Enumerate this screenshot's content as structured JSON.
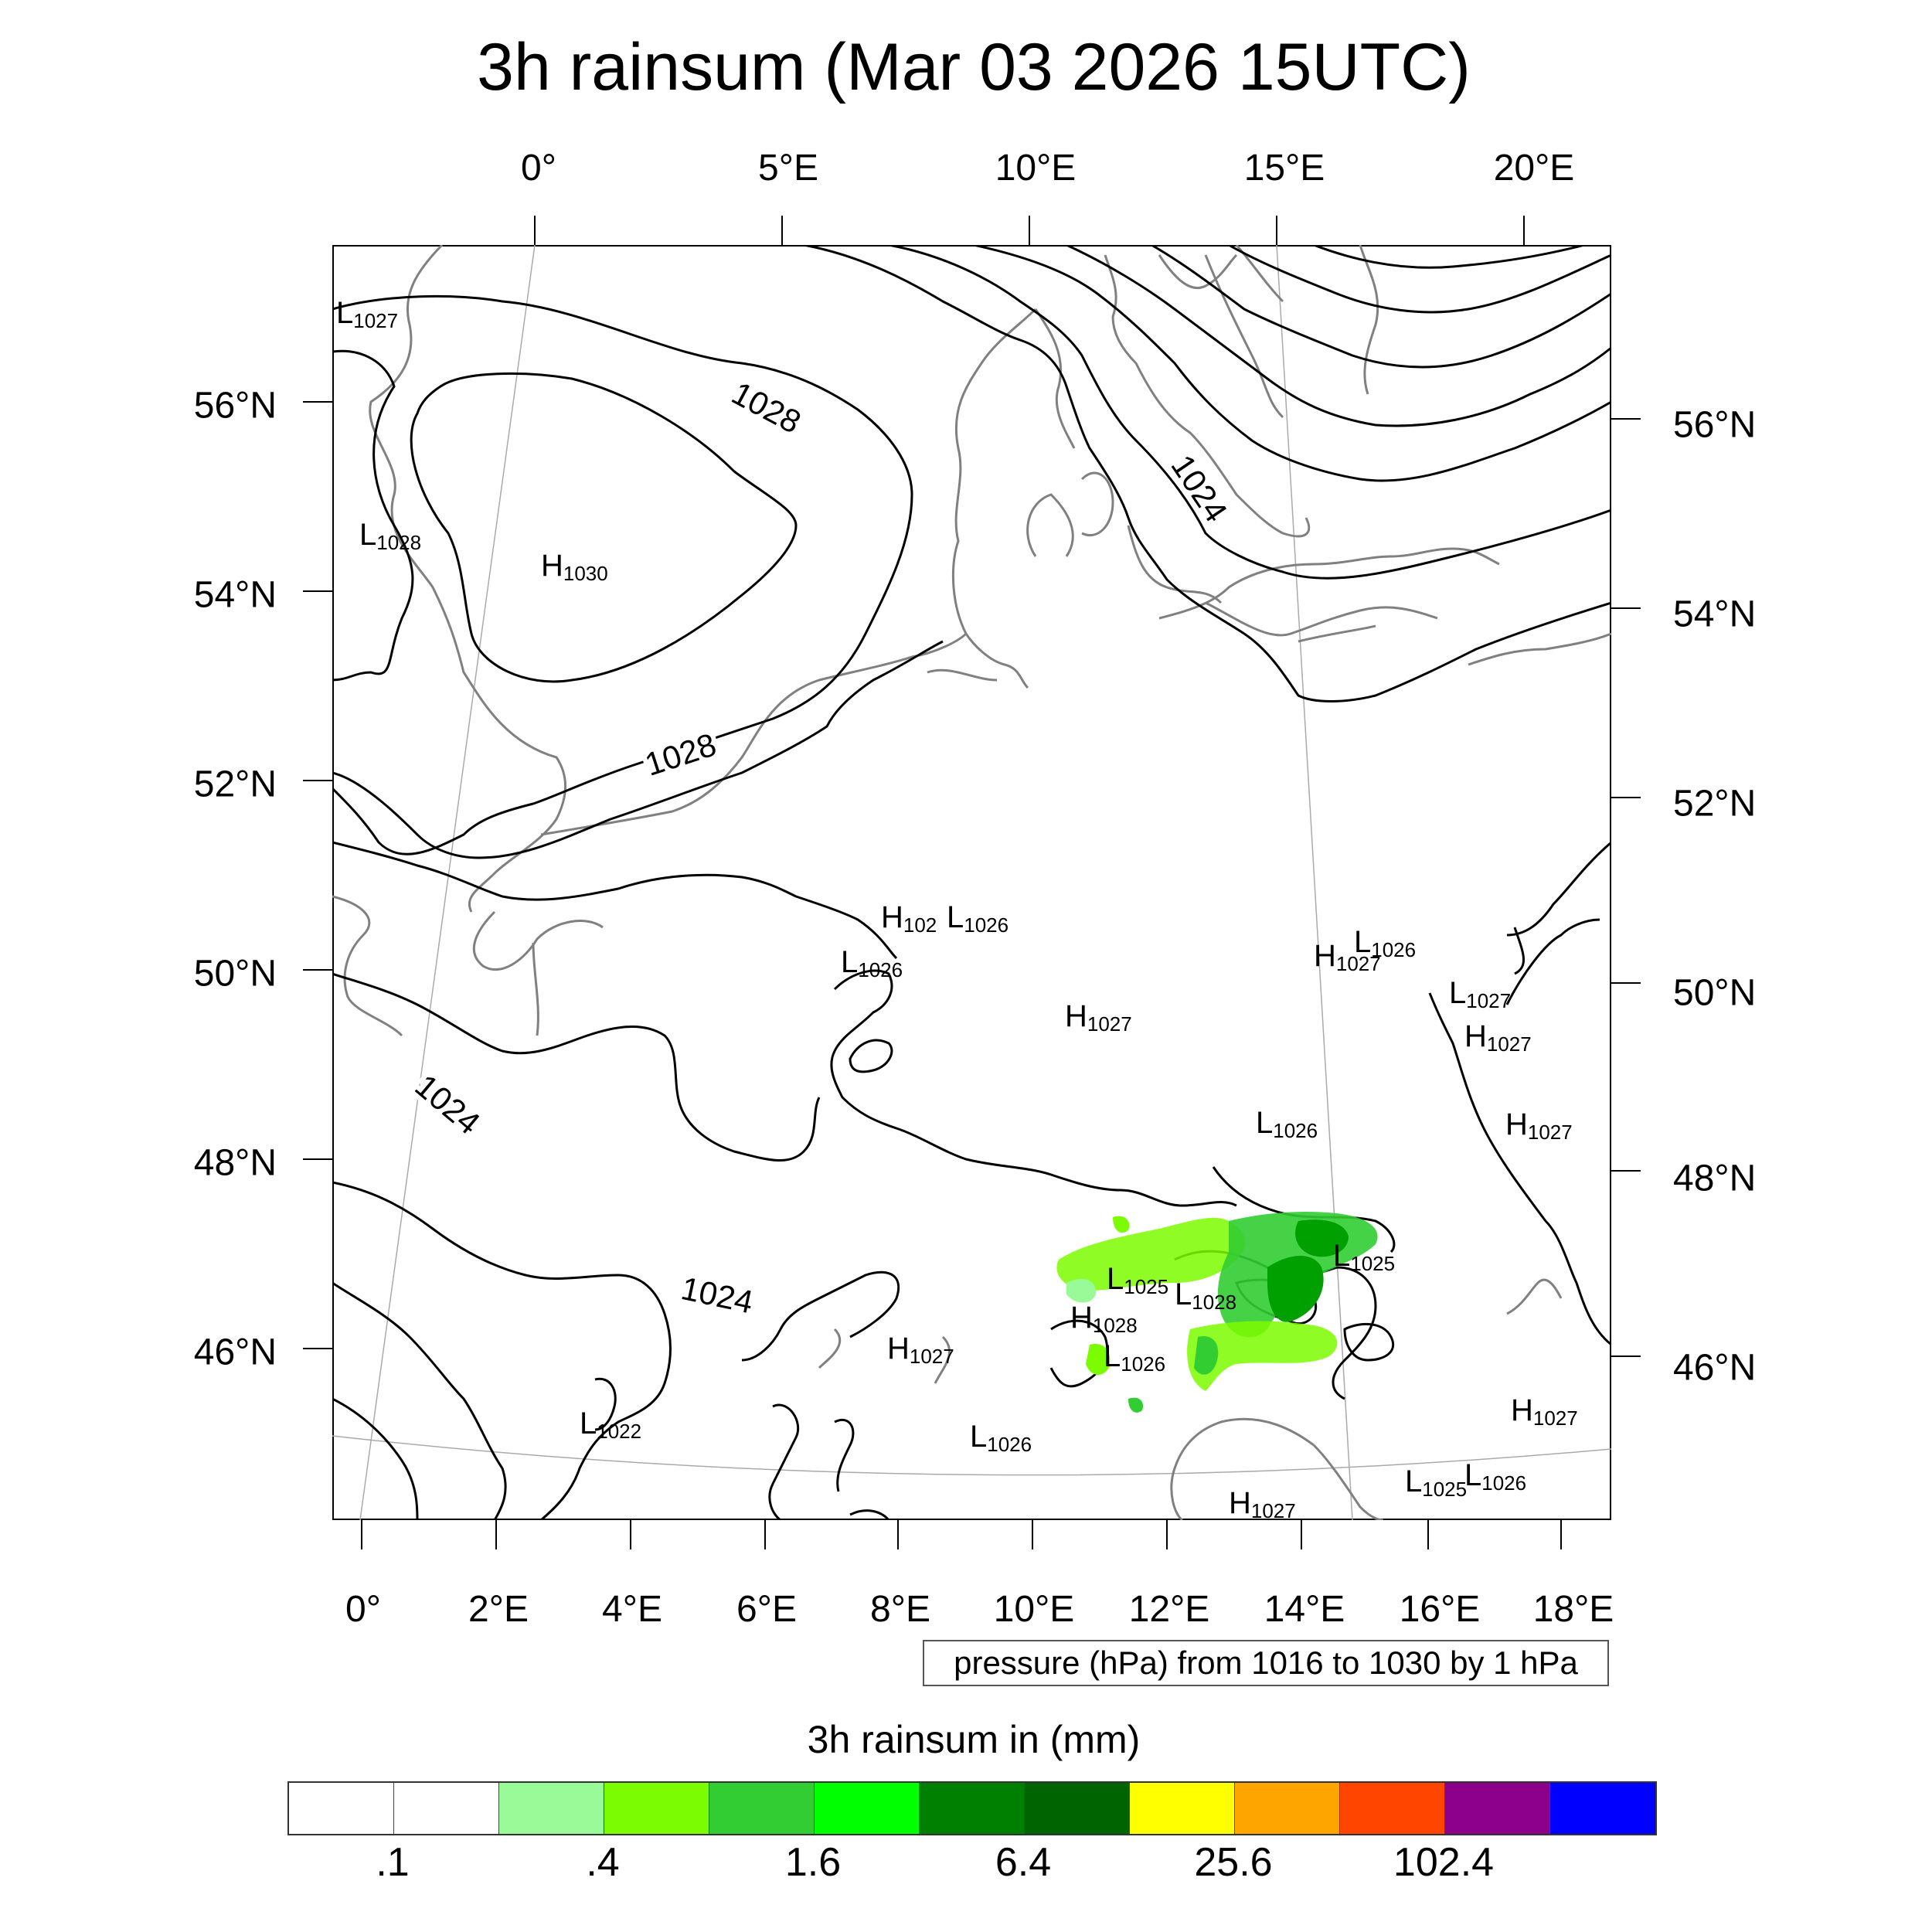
{
  "title": "3h rainsum (Mar 03 2026 15UTC)",
  "top_lon_labels": [
    "0°",
    "5°E",
    "10°E",
    "15°E",
    "20°E"
  ],
  "bottom_lon_labels": [
    "0°",
    "2°E",
    "4°E",
    "6°E",
    "8°E",
    "10°E",
    "12°E",
    "14°E",
    "16°E",
    "18°E"
  ],
  "left_lat_labels": [
    "56°N",
    "54°N",
    "52°N",
    "50°N",
    "48°N",
    "46°N"
  ],
  "right_lat_labels": [
    "56°N",
    "54°N",
    "52°N",
    "50°N",
    "48°N",
    "46°N"
  ],
  "contour_labels": [
    "1028",
    "1028",
    "1024",
    "1024",
    "1024"
  ],
  "pressure_centers": [
    {
      "kind": "L",
      "value": "1027"
    },
    {
      "kind": "L",
      "value": "1028"
    },
    {
      "kind": "H",
      "value": "1030"
    },
    {
      "kind": "H",
      "value": "102"
    },
    {
      "kind": "L",
      "value": "1026"
    },
    {
      "kind": "L",
      "value": "1026"
    },
    {
      "kind": "H",
      "value": "1027"
    },
    {
      "kind": "L",
      "value": "1026"
    },
    {
      "kind": "H",
      "value": "1027"
    },
    {
      "kind": "L",
      "value": "1027"
    },
    {
      "kind": "H",
      "value": "1027"
    },
    {
      "kind": "L",
      "value": "1026"
    },
    {
      "kind": "H",
      "value": "1027"
    },
    {
      "kind": "L",
      "value": "1025"
    },
    {
      "kind": "L",
      "value": "1025"
    },
    {
      "kind": "L",
      "value": "1028"
    },
    {
      "kind": "H",
      "value": "1028"
    },
    {
      "kind": "L",
      "value": "1026"
    },
    {
      "kind": "H",
      "value": "1027"
    },
    {
      "kind": "L",
      "value": "1026"
    },
    {
      "kind": "L",
      "value": "1022"
    },
    {
      "kind": "H",
      "value": "1027"
    },
    {
      "kind": "L",
      "value": "1025"
    },
    {
      "kind": "L",
      "value": "1026"
    },
    {
      "kind": "H",
      "value": "1027"
    }
  ],
  "info_box": "pressure (hPa) from 1016 to 1030 by 1 hPa",
  "colorbar": {
    "title": "3h rainsum in (mm)",
    "colors": [
      "#ffffff",
      "#ffffff",
      "#98fb98",
      "#7cfc00",
      "#32cd32",
      "#00ff00",
      "#008000",
      "#006400",
      "#ffff00",
      "#ffa500",
      "#ff4500",
      "#8b008b",
      "#0000ff"
    ],
    "tick_labels": [
      ".1",
      ".4",
      "1.6",
      "6.4",
      "25.6",
      "102.4"
    ]
  },
  "colors": {
    "coastline": "#808080",
    "isobar": "#000000",
    "graticule": "#aaaaaa",
    "rain_light": "#7cfc00",
    "rain_medium": "#32cd32",
    "rain_heavy": "#00a000"
  }
}
